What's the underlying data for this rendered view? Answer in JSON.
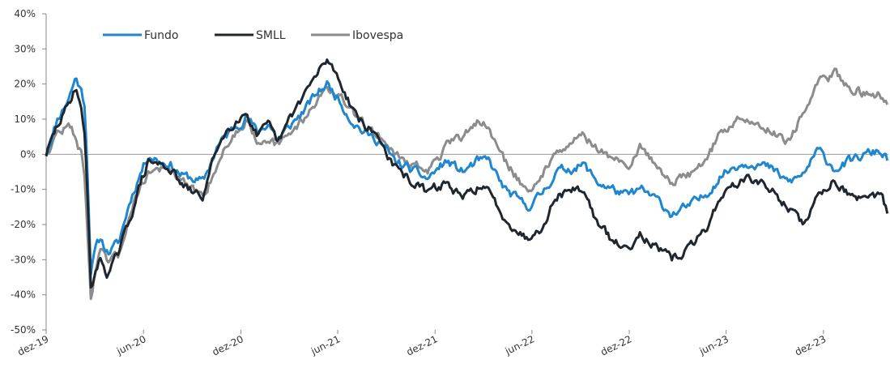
{
  "chart_data": {
    "type": "line",
    "title": "",
    "xlabel": "",
    "ylabel": "",
    "x_tick_labels": [
      "dez-19",
      "jun-20",
      "dez-20",
      "jun-21",
      "dez-21",
      "jun-22",
      "dez-22",
      "jun-23",
      "dez-23"
    ],
    "y_tick_labels": [
      "40%",
      "30%",
      "20%",
      "10%",
      "0%",
      "-10%",
      "-20%",
      "-30%",
      "-40%",
      "-50%"
    ],
    "ylim": [
      -50,
      40
    ],
    "xlim": [
      "2019-12-30",
      "2024-04-30"
    ],
    "grid": false,
    "zero_line": true,
    "legend_position": "top-left",
    "colors": {
      "Fundo": "#1f86cf",
      "SMLL": "#1f262e",
      "Ibovespa": "#8a8c8e"
    },
    "series": [
      {
        "name": "Fundo",
        "points": [
          [
            "2019-12-30",
            0
          ],
          [
            "2020-01-20",
            10
          ],
          [
            "2020-02-10",
            16
          ],
          [
            "2020-02-24",
            22
          ],
          [
            "2020-03-05",
            18
          ],
          [
            "2020-03-12",
            14
          ],
          [
            "2020-03-18",
            -10
          ],
          [
            "2020-03-23",
            -33
          ],
          [
            "2020-04-01",
            -27
          ],
          [
            "2020-04-10",
            -24
          ],
          [
            "2020-04-24",
            -28
          ],
          [
            "2020-05-15",
            -25
          ],
          [
            "2020-06-05",
            -13
          ],
          [
            "2020-06-25",
            -5
          ],
          [
            "2020-07-10",
            0
          ],
          [
            "2020-08-01",
            -2
          ],
          [
            "2020-08-20",
            -3
          ],
          [
            "2020-09-10",
            -6
          ],
          [
            "2020-10-01",
            -7
          ],
          [
            "2020-10-20",
            -8
          ],
          [
            "2020-11-15",
            2
          ],
          [
            "2020-12-01",
            5
          ],
          [
            "2020-12-20",
            8
          ],
          [
            "2021-01-10",
            11
          ],
          [
            "2021-01-30",
            6
          ],
          [
            "2021-02-20",
            9
          ],
          [
            "2021-03-10",
            4
          ],
          [
            "2021-04-01",
            8
          ],
          [
            "2021-05-01",
            13
          ],
          [
            "2021-05-20",
            17
          ],
          [
            "2021-06-10",
            20
          ],
          [
            "2021-07-01",
            16
          ],
          [
            "2021-07-25",
            10
          ],
          [
            "2021-08-20",
            6
          ],
          [
            "2021-09-15",
            4
          ],
          [
            "2021-10-15",
            -2
          ],
          [
            "2021-11-10",
            -4
          ],
          [
            "2021-12-15",
            -7
          ],
          [
            "2022-01-20",
            -2
          ],
          [
            "2022-02-20",
            -5
          ],
          [
            "2022-03-20",
            -2
          ],
          [
            "2022-04-10",
            -2
          ],
          [
            "2022-05-10",
            -10
          ],
          [
            "2022-06-20",
            -15
          ],
          [
            "2022-07-15",
            -12
          ],
          [
            "2022-08-15",
            -5
          ],
          [
            "2022-09-10",
            -4
          ],
          [
            "2022-10-05",
            -3
          ],
          [
            "2022-11-01",
            -8
          ],
          [
            "2022-11-30",
            -10
          ],
          [
            "2022-12-25",
            -12
          ],
          [
            "2023-01-20",
            -10
          ],
          [
            "2023-02-20",
            -13
          ],
          [
            "2023-03-20",
            -17
          ],
          [
            "2023-04-20",
            -15
          ],
          [
            "2023-05-20",
            -12
          ],
          [
            "2023-06-20",
            -6
          ],
          [
            "2023-07-20",
            -3
          ],
          [
            "2023-08-20",
            -2
          ],
          [
            "2023-09-20",
            -4
          ],
          [
            "2023-10-25",
            -8
          ],
          [
            "2023-11-20",
            -6
          ],
          [
            "2023-12-20",
            1
          ],
          [
            "2024-01-20",
            -4
          ],
          [
            "2024-02-20",
            -2
          ],
          [
            "2024-03-20",
            0
          ],
          [
            "2024-04-15",
            1
          ],
          [
            "2024-04-30",
            -2
          ]
        ]
      },
      {
        "name": "SMLL",
        "points": [
          [
            "2019-12-30",
            0
          ],
          [
            "2020-01-20",
            8
          ],
          [
            "2020-02-10",
            14
          ],
          [
            "2020-02-24",
            20
          ],
          [
            "2020-03-05",
            12
          ],
          [
            "2020-03-12",
            5
          ],
          [
            "2020-03-18",
            -15
          ],
          [
            "2020-03-23",
            -39
          ],
          [
            "2020-04-01",
            -33
          ],
          [
            "2020-04-10",
            -30
          ],
          [
            "2020-04-24",
            -34
          ],
          [
            "2020-05-15",
            -28
          ],
          [
            "2020-06-05",
            -18
          ],
          [
            "2020-06-25",
            -8
          ],
          [
            "2020-07-10",
            -2
          ],
          [
            "2020-08-01",
            -3
          ],
          [
            "2020-08-20",
            -4
          ],
          [
            "2020-09-10",
            -9
          ],
          [
            "2020-10-01",
            -11
          ],
          [
            "2020-10-20",
            -12
          ],
          [
            "2020-11-15",
            2
          ],
          [
            "2020-12-01",
            6
          ],
          [
            "2020-12-20",
            10
          ],
          [
            "2021-01-10",
            12
          ],
          [
            "2021-01-30",
            5
          ],
          [
            "2021-02-20",
            8
          ],
          [
            "2021-03-10",
            3
          ],
          [
            "2021-04-01",
            10
          ],
          [
            "2021-05-01",
            18
          ],
          [
            "2021-05-20",
            22
          ],
          [
            "2021-06-10",
            27
          ],
          [
            "2021-07-01",
            22
          ],
          [
            "2021-07-25",
            14
          ],
          [
            "2021-08-20",
            8
          ],
          [
            "2021-09-15",
            5
          ],
          [
            "2021-10-15",
            -4
          ],
          [
            "2021-11-10",
            -7
          ],
          [
            "2021-12-15",
            -11
          ],
          [
            "2022-01-20",
            -8
          ],
          [
            "2022-02-20",
            -13
          ],
          [
            "2022-03-20",
            -9
          ],
          [
            "2022-04-10",
            -11
          ],
          [
            "2022-05-10",
            -18
          ],
          [
            "2022-06-20",
            -24
          ],
          [
            "2022-07-15",
            -21
          ],
          [
            "2022-08-15",
            -12
          ],
          [
            "2022-09-10",
            -10
          ],
          [
            "2022-10-05",
            -10
          ],
          [
            "2022-11-01",
            -20
          ],
          [
            "2022-11-30",
            -25
          ],
          [
            "2022-12-25",
            -27
          ],
          [
            "2023-01-20",
            -22
          ],
          [
            "2023-02-20",
            -27
          ],
          [
            "2023-03-20",
            -30
          ],
          [
            "2023-04-20",
            -27
          ],
          [
            "2023-05-20",
            -22
          ],
          [
            "2023-06-20",
            -12
          ],
          [
            "2023-07-20",
            -8
          ],
          [
            "2023-08-20",
            -7
          ],
          [
            "2023-09-20",
            -10
          ],
          [
            "2023-10-25",
            -15
          ],
          [
            "2023-11-20",
            -20
          ],
          [
            "2023-12-20",
            -12
          ],
          [
            "2024-01-20",
            -7
          ],
          [
            "2024-02-20",
            -12
          ],
          [
            "2024-03-20",
            -14
          ],
          [
            "2024-04-15",
            -11
          ],
          [
            "2024-04-30",
            -17
          ]
        ]
      },
      {
        "name": "Ibovespa",
        "points": [
          [
            "2019-12-30",
            0
          ],
          [
            "2020-01-20",
            6
          ],
          [
            "2020-02-10",
            8
          ],
          [
            "2020-02-24",
            5
          ],
          [
            "2020-03-05",
            0
          ],
          [
            "2020-03-12",
            -8
          ],
          [
            "2020-03-18",
            -25
          ],
          [
            "2020-03-23",
            -41
          ],
          [
            "2020-04-01",
            -33
          ],
          [
            "2020-04-10",
            -28
          ],
          [
            "2020-04-24",
            -31
          ],
          [
            "2020-05-15",
            -29
          ],
          [
            "2020-06-05",
            -16
          ],
          [
            "2020-06-25",
            -9
          ],
          [
            "2020-07-10",
            -5
          ],
          [
            "2020-08-01",
            -4
          ],
          [
            "2020-08-20",
            -5
          ],
          [
            "2020-09-10",
            -8
          ],
          [
            "2020-10-01",
            -10
          ],
          [
            "2020-10-20",
            -12
          ],
          [
            "2020-11-15",
            -3
          ],
          [
            "2020-12-01",
            2
          ],
          [
            "2020-12-20",
            6
          ],
          [
            "2021-01-10",
            10
          ],
          [
            "2021-01-30",
            4
          ],
          [
            "2021-02-20",
            5
          ],
          [
            "2021-03-10",
            2
          ],
          [
            "2021-04-01",
            6
          ],
          [
            "2021-05-01",
            11
          ],
          [
            "2021-05-20",
            15
          ],
          [
            "2021-06-10",
            19
          ],
          [
            "2021-07-01",
            17
          ],
          [
            "2021-07-25",
            12
          ],
          [
            "2021-08-20",
            8
          ],
          [
            "2021-09-15",
            6
          ],
          [
            "2021-10-15",
            0
          ],
          [
            "2021-11-10",
            -2
          ],
          [
            "2021-12-15",
            -5
          ],
          [
            "2022-01-20",
            2
          ],
          [
            "2022-02-20",
            5
          ],
          [
            "2022-03-20",
            10
          ],
          [
            "2022-04-10",
            7
          ],
          [
            "2022-05-10",
            -2
          ],
          [
            "2022-06-20",
            -10
          ],
          [
            "2022-07-15",
            -8
          ],
          [
            "2022-08-15",
            2
          ],
          [
            "2022-09-10",
            3
          ],
          [
            "2022-10-05",
            6
          ],
          [
            "2022-11-01",
            1
          ],
          [
            "2022-11-30",
            -1
          ],
          [
            "2022-12-25",
            -4
          ],
          [
            "2023-01-20",
            2
          ],
          [
            "2023-02-20",
            -3
          ],
          [
            "2023-03-20",
            -8
          ],
          [
            "2023-04-20",
            -6
          ],
          [
            "2023-05-20",
            -2
          ],
          [
            "2023-06-20",
            6
          ],
          [
            "2023-07-20",
            10
          ],
          [
            "2023-08-20",
            9
          ],
          [
            "2023-09-20",
            7
          ],
          [
            "2023-10-25",
            4
          ],
          [
            "2023-11-20",
            11
          ],
          [
            "2023-12-20",
            20
          ],
          [
            "2024-01-20",
            23
          ],
          [
            "2024-02-20",
            19
          ],
          [
            "2024-03-20",
            17
          ],
          [
            "2024-04-15",
            17
          ],
          [
            "2024-04-30",
            15
          ]
        ]
      }
    ]
  }
}
